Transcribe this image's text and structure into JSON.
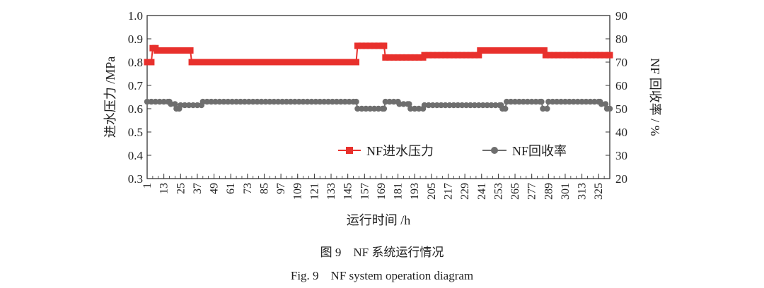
{
  "chart_data": {
    "type": "line",
    "x_tick_labels": [
      "1",
      "13",
      "25",
      "37",
      "49",
      "61",
      "73",
      "85",
      "97",
      "109",
      "121",
      "133",
      "145",
      "157",
      "169",
      "181",
      "193",
      "205",
      "217",
      "229",
      "241",
      "253",
      "265",
      "277",
      "289",
      "301",
      "313",
      "325"
    ],
    "xlabel": "运行时间 /h",
    "ylabel_left": "进水压力 /MPa",
    "ylabel_right": "NF 回收率 / %",
    "ylim_left": [
      0.3,
      1.0
    ],
    "yticks_left": [
      "0.3",
      "0.4",
      "0.5",
      "0.6",
      "0.7",
      "0.8",
      "0.9",
      "1.0"
    ],
    "ylim_right": [
      20,
      90
    ],
    "yticks_right": [
      "20",
      "30",
      "40",
      "50",
      "60",
      "70",
      "80",
      "90"
    ],
    "xlim": [
      1,
      333
    ],
    "grid": false,
    "legend_position": "bottom-right inside",
    "series": [
      {
        "name": "NF进水压力",
        "axis": "left",
        "color": "#e8302c",
        "marker": "square",
        "segments": [
          {
            "from": 1,
            "to": 4,
            "value": 0.8
          },
          {
            "from": 5,
            "to": 7,
            "value": 0.86
          },
          {
            "from": 8,
            "to": 32,
            "value": 0.85
          },
          {
            "from": 33,
            "to": 151,
            "value": 0.8
          },
          {
            "from": 152,
            "to": 171,
            "value": 0.87
          },
          {
            "from": 172,
            "to": 199,
            "value": 0.82
          },
          {
            "from": 200,
            "to": 239,
            "value": 0.83
          },
          {
            "from": 240,
            "to": 286,
            "value": 0.85
          },
          {
            "from": 287,
            "to": 333,
            "value": 0.83
          }
        ]
      },
      {
        "name": "NF回收率",
        "axis": "right",
        "color": "#6e6e6e",
        "marker": "circle",
        "segments": [
          {
            "from": 1,
            "to": 17,
            "value": 53
          },
          {
            "from": 18,
            "to": 21,
            "value": 52
          },
          {
            "from": 22,
            "to": 24,
            "value": 50
          },
          {
            "from": 25,
            "to": 40,
            "value": 51.5
          },
          {
            "from": 41,
            "to": 151,
            "value": 53
          },
          {
            "from": 152,
            "to": 171,
            "value": 50
          },
          {
            "from": 172,
            "to": 181,
            "value": 53
          },
          {
            "from": 182,
            "to": 189,
            "value": 52
          },
          {
            "from": 190,
            "to": 199,
            "value": 50
          },
          {
            "from": 200,
            "to": 255,
            "value": 51.5
          },
          {
            "from": 256,
            "to": 258,
            "value": 50
          },
          {
            "from": 259,
            "to": 284,
            "value": 53
          },
          {
            "from": 285,
            "to": 288,
            "value": 50
          },
          {
            "from": 289,
            "to": 326,
            "value": 53
          },
          {
            "from": 327,
            "to": 330,
            "value": 52
          },
          {
            "from": 331,
            "to": 333,
            "value": 50
          }
        ]
      }
    ]
  },
  "caption": {
    "chinese": "图 9　NF 系统运行情况",
    "english": "Fig. 9　NF system operation diagram"
  }
}
